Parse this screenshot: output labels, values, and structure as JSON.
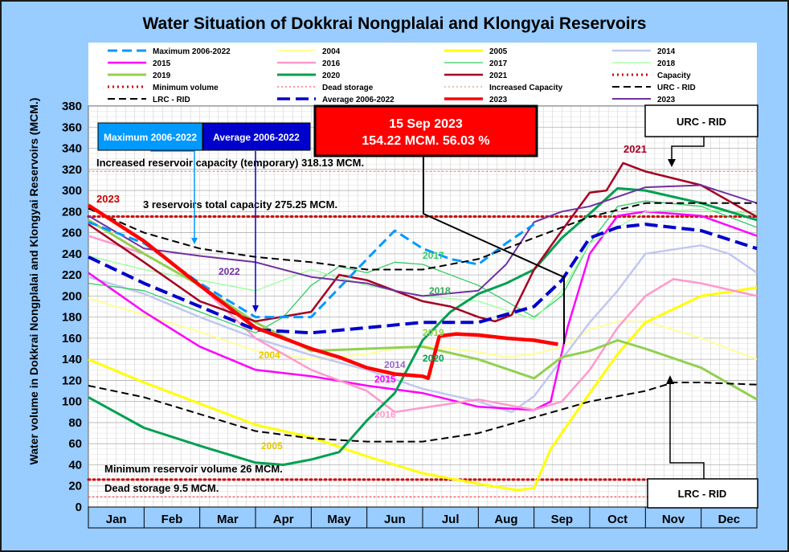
{
  "title": "Water Situation of Dokkrai Nongplalai and Klongyai Reservoirs",
  "colors": {
    "max": "#0099ff",
    "avg": "#0000cc",
    "y2023": "#ff0000",
    "y2022": "#7030a0",
    "y2021": "#a50021",
    "y2020": "#00a050",
    "y2019": "#92d050",
    "y2018": "#99ff99",
    "y2017": "#33cc66",
    "y2016": "#ff99cc",
    "y2015": "#ff00ff",
    "y2014": "#c0c8f0",
    "y2005": "#ffff00",
    "y2004": "#ffff99",
    "capacity": "#cc0000",
    "lrc": "#000000"
  },
  "legend": [
    "Maximum 2006-2022",
    "2004",
    "2005",
    "2014",
    "2015",
    "2016",
    "2017",
    "2018",
    "2019",
    "2020",
    "2021",
    "Capacity",
    "Minimum volume",
    "Dead storage",
    "Increased Capacity",
    "URC - RID",
    "LRC - RID",
    "Average 2006-2022",
    "2023",
    "2023"
  ],
  "annotations": {
    "current_date": "15 Sep 2023",
    "current_value": "154.22 MCM. 56.03 %",
    "max_label": "Maximum 2006-2022",
    "avg_label": "Average 2006-2022",
    "urc_label": "URC - RID",
    "lrc_label": "LRC - RID",
    "increased_capacity": "Increased reservoir capacity (temporary)  318.13 MCM.",
    "total_capacity": "3 reservoirs total capacity 275.25 MCM.",
    "minimum_volume": "Minimum reservoir volume 26 MCM.",
    "dead_storage": "Dead storage 9.5 MCM.",
    "year_labels": [
      "2023",
      "2022",
      "2021",
      "2020",
      "2019",
      "2018",
      "2017",
      "2016",
      "2015",
      "2014",
      "2005",
      "2004"
    ]
  },
  "chart_data": {
    "type": "line",
    "title": "Water Situation of Dokkrai Nongplalai and Klongyai Reservoirs",
    "xlabel": "",
    "ylabel": "Water volume in Dokkrai Nongplalai and Klongyai Reservoirs (MCM.)",
    "x_unit": "month (1.0 = start of Jan, 13.0 = end of Dec)",
    "categories": [
      "Jan",
      "Feb",
      "Mar",
      "Apr",
      "May",
      "Jun",
      "Jul",
      "Aug",
      "Sep",
      "Oct",
      "Nov",
      "Dec"
    ],
    "ylim": [
      0,
      380
    ],
    "yticks": [
      0,
      20,
      40,
      60,
      80,
      100,
      120,
      140,
      160,
      180,
      200,
      220,
      240,
      260,
      280,
      300,
      320,
      340,
      360,
      380
    ],
    "grid": true,
    "legend_position": "top",
    "reference_lines": [
      {
        "name": "Increased Capacity",
        "y": 318.13
      },
      {
        "name": "Capacity",
        "y": 275.25
      },
      {
        "name": "Minimum volume",
        "y": 26
      },
      {
        "name": "Dead storage",
        "y": 9.5
      }
    ],
    "series": [
      {
        "name": "2004",
        "x": [
          1.0,
          2.0,
          3.0,
          4.0,
          5.0,
          6.0,
          6.5,
          7.0,
          8.0,
          8.5,
          9.0,
          9.5,
          10.0,
          10.5,
          11.0,
          12.0,
          13.0
        ],
        "y": [
          198,
          182,
          166,
          148,
          140,
          145,
          150,
          153,
          147,
          142,
          145,
          152,
          168,
          176,
          176,
          160,
          140
        ]
      },
      {
        "name": "2005",
        "x": [
          1.0,
          2.0,
          3.0,
          4.0,
          5.0,
          6.0,
          7.0,
          8.0,
          8.7,
          9.0,
          9.3,
          9.6,
          10.0,
          10.5,
          11.0,
          12.0,
          13.0
        ],
        "y": [
          140,
          118,
          98,
          78,
          66,
          48,
          32,
          22,
          16,
          18,
          55,
          78,
          108,
          145,
          175,
          200,
          208
        ]
      },
      {
        "name": "2014",
        "x": [
          1.0,
          2.0,
          3.0,
          4.0,
          5.0,
          6.0,
          7.0,
          8.0,
          8.6,
          9.0,
          9.5,
          10.0,
          10.5,
          11.0,
          12.0,
          12.5,
          13.0
        ],
        "y": [
          218,
          202,
          180,
          160,
          144,
          130,
          112,
          100,
          90,
          105,
          140,
          175,
          205,
          240,
          248,
          240,
          222
        ]
      },
      {
        "name": "2015",
        "x": [
          1.0,
          2.0,
          3.0,
          4.0,
          5.0,
          6.0,
          7.0,
          8.0,
          9.0,
          9.3,
          9.6,
          10.0,
          10.5,
          11.0,
          12.0,
          13.0
        ],
        "y": [
          222,
          185,
          152,
          130,
          124,
          115,
          108,
          95,
          92,
          100,
          170,
          240,
          276,
          280,
          276,
          257
        ]
      },
      {
        "name": "2016",
        "x": [
          1.0,
          2.0,
          3.0,
          4.0,
          5.0,
          6.0,
          6.5,
          7.0,
          8.0,
          9.0,
          9.5,
          10.0,
          10.5,
          11.0,
          11.5,
          12.0,
          13.0
        ],
        "y": [
          257,
          240,
          210,
          160,
          130,
          110,
          90,
          94,
          102,
          92,
          100,
          130,
          170,
          200,
          216,
          212,
          200
        ]
      },
      {
        "name": "2017",
        "x": [
          1.0,
          2.0,
          3.0,
          4.0,
          4.5,
          5.0,
          5.5,
          6.0,
          6.5,
          7.0,
          8.0,
          9.0,
          9.5,
          10.0,
          10.5,
          11.0,
          12.0,
          13.0
        ],
        "y": [
          212,
          205,
          185,
          165,
          180,
          210,
          228,
          222,
          232,
          230,
          210,
          180,
          200,
          250,
          285,
          290,
          285,
          265
        ]
      },
      {
        "name": "2018",
        "x": [
          1.0,
          2.0,
          3.0,
          4.0,
          5.0,
          6.0,
          7.0,
          8.0,
          9.0,
          9.5,
          10.0,
          11.0,
          12.0,
          13.0
        ],
        "y": [
          238,
          225,
          215,
          205,
          225,
          210,
          200,
          195,
          178,
          205,
          250,
          280,
          282,
          278
        ]
      },
      {
        "name": "2019",
        "x": [
          1.0,
          2.0,
          3.0,
          4.0,
          5.0,
          6.0,
          7.0,
          8.0,
          9.0,
          9.5,
          10.0,
          10.5,
          11.0,
          12.0,
          13.0
        ],
        "y": [
          272,
          240,
          210,
          175,
          148,
          150,
          152,
          140,
          122,
          142,
          148,
          158,
          150,
          132,
          102
        ]
      },
      {
        "name": "2020",
        "x": [
          1.0,
          2.0,
          3.0,
          4.0,
          4.5,
          5.0,
          5.5,
          6.0,
          6.5,
          7.0,
          7.5,
          8.0,
          8.5,
          9.0,
          9.5,
          10.0,
          10.5,
          11.0,
          12.0,
          13.0
        ],
        "y": [
          104,
          75,
          58,
          42,
          40,
          45,
          52,
          82,
          108,
          158,
          185,
          202,
          212,
          225,
          255,
          278,
          302,
          300,
          288,
          272
        ]
      },
      {
        "name": "2021",
        "x": [
          1.0,
          2.0,
          3.0,
          4.0,
          5.0,
          5.5,
          6.0,
          6.5,
          7.0,
          7.5,
          8.0,
          8.3,
          8.6,
          9.0,
          9.5,
          10.0,
          10.3,
          10.6,
          11.0,
          12.0,
          13.0
        ],
        "y": [
          268,
          232,
          195,
          176,
          185,
          220,
          215,
          205,
          195,
          190,
          180,
          176,
          182,
          225,
          262,
          298,
          300,
          326,
          318,
          305,
          275
        ]
      },
      {
        "name": "2022",
        "x": [
          1.0,
          2.0,
          3.0,
          4.0,
          5.0,
          6.0,
          6.5,
          7.0,
          8.0,
          8.5,
          9.0,
          9.5,
          10.0,
          11.0,
          12.0,
          13.0
        ],
        "y": [
          276,
          245,
          238,
          232,
          218,
          212,
          205,
          200,
          205,
          230,
          270,
          280,
          285,
          303,
          305,
          288
        ]
      },
      {
        "name": "Maximum 2006-2022",
        "x": [
          1.0,
          2.0,
          3.0,
          4.0,
          5.0,
          6.0,
          6.5,
          7.0,
          7.5,
          8.0,
          8.5,
          9.0
        ],
        "y": [
          270,
          250,
          212,
          180,
          180,
          235,
          262,
          245,
          235,
          230,
          250,
          268
        ]
      },
      {
        "name": "Average 2006-2022",
        "x": [
          1.0,
          2.0,
          3.0,
          4.0,
          5.0,
          6.0,
          7.0,
          8.0,
          9.0,
          9.5,
          10.0,
          10.5,
          11.0,
          12.0,
          13.0
        ],
        "y": [
          237,
          212,
          190,
          168,
          165,
          170,
          175,
          175,
          190,
          215,
          255,
          265,
          268,
          262,
          245
        ]
      },
      {
        "name": "URC - RID",
        "x": [
          1.0,
          2.0,
          3.0,
          4.0,
          5.0,
          6.0,
          7.0,
          8.0,
          9.0,
          10.0,
          11.0,
          12.0,
          13.0
        ],
        "y": [
          283,
          260,
          245,
          237,
          232,
          225,
          225,
          235,
          255,
          275,
          288,
          288,
          288
        ]
      },
      {
        "name": "LRC - RID",
        "x": [
          1.0,
          2.0,
          3.0,
          4.0,
          5.0,
          6.0,
          7.0,
          8.0,
          9.0,
          10.0,
          11.0,
          11.5,
          12.0,
          13.0
        ],
        "y": [
          115,
          104,
          88,
          72,
          65,
          62,
          62,
          70,
          85,
          100,
          110,
          118,
          118,
          116
        ]
      },
      {
        "name": "2023",
        "x": [
          1.0,
          2.0,
          3.0,
          4.0,
          5.0,
          5.5,
          6.0,
          6.5,
          7.0,
          7.1,
          7.3,
          7.6,
          8.0,
          8.5,
          9.0,
          9.43
        ],
        "y": [
          286,
          252,
          210,
          170,
          150,
          142,
          132,
          126,
          124,
          122,
          162,
          164,
          163,
          160,
          158,
          154.22
        ]
      }
    ]
  }
}
